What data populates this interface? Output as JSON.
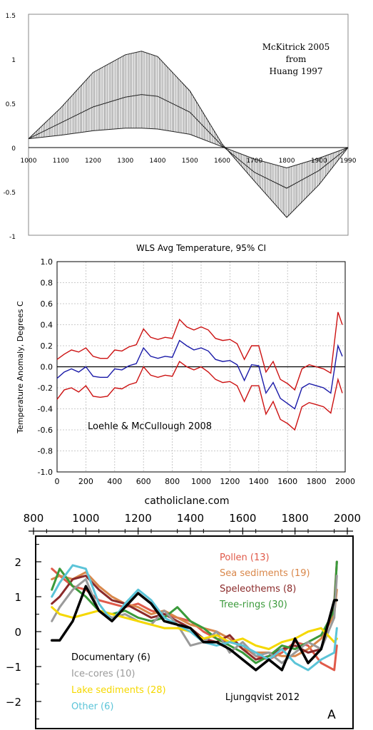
{
  "watermark": "catholiclane.com",
  "chart_data": [
    {
      "type": "line",
      "annotation": [
        "McKitrick 2005",
        "from",
        "Huang 1997"
      ],
      "xlim": [
        1000,
        1990
      ],
      "ylim": [
        -1,
        1.5
      ],
      "x_ticks": [
        "1000",
        "1100",
        "1200",
        "1300",
        "1400",
        "1500",
        "1600",
        "1700",
        "1800",
        "1900",
        "1990"
      ],
      "y_ticks": [
        "1.5",
        "1",
        "0.5",
        "0",
        "-0.5",
        "-1"
      ],
      "x": [
        1000,
        1100,
        1200,
        1300,
        1350,
        1400,
        1500,
        1600,
        1700,
        1800,
        1900,
        1990
      ],
      "series": [
        {
          "values": [
            0.1,
            0.28,
            0.46,
            0.57,
            0.6,
            0.58,
            0.4,
            0.02,
            -0.28,
            -0.46,
            -0.26,
            0.0
          ]
        },
        {
          "values": [
            0.1,
            0.45,
            0.85,
            1.05,
            1.09,
            1.03,
            0.64,
            0.04,
            -0.38,
            -0.79,
            -0.42,
            0.0
          ]
        },
        {
          "values": [
            0.1,
            0.14,
            0.19,
            0.22,
            0.22,
            0.21,
            0.15,
            0.01,
            -0.13,
            -0.23,
            -0.12,
            0.0
          ]
        }
      ],
      "band": true,
      "grid": false
    },
    {
      "type": "line",
      "title": "WLS Avg Temperature, 95% CI",
      "annotation": "Loehle & McCullough 2008",
      "ylabel": "Temperature Anomaly, Degrees C",
      "xlim": [
        0,
        2000
      ],
      "ylim": [
        -1.0,
        1.0
      ],
      "x_ticks": [
        "0",
        "200",
        "400",
        "600",
        "800",
        "1000",
        "1200",
        "1400",
        "1600",
        "1800",
        "2000"
      ],
      "y_ticks": [
        "1.0",
        "0.8",
        "0.6",
        "0.4",
        "0.2",
        "0.0",
        "-0.2",
        "-0.4",
        "-0.6",
        "-0.8",
        "-1.0"
      ],
      "grid": true,
      "x": [
        0,
        50,
        100,
        150,
        200,
        250,
        300,
        350,
        400,
        450,
        500,
        550,
        600,
        650,
        700,
        750,
        800,
        850,
        900,
        950,
        1000,
        1050,
        1100,
        1150,
        1200,
        1250,
        1300,
        1350,
        1400,
        1450,
        1500,
        1550,
        1600,
        1650,
        1700,
        1750,
        1800,
        1850,
        1900,
        1950,
        1980
      ],
      "series": [
        {
          "color": "#1a1aa8",
          "values": [
            -0.11,
            -0.05,
            -0.02,
            -0.05,
            0.0,
            -0.09,
            -0.1,
            -0.1,
            -0.02,
            -0.03,
            0.01,
            0.03,
            0.18,
            0.1,
            0.08,
            0.1,
            0.09,
            0.25,
            0.2,
            0.16,
            0.18,
            0.15,
            0.07,
            0.05,
            0.06,
            0.02,
            -0.13,
            0.02,
            0.01,
            -0.25,
            -0.15,
            -0.3,
            -0.35,
            -0.4,
            -0.2,
            -0.16,
            -0.18,
            -0.2,
            -0.25,
            0.2,
            0.1
          ]
        },
        {
          "color": "#cc1111",
          "values": [
            0.07,
            0.12,
            0.16,
            0.14,
            0.18,
            0.1,
            0.08,
            0.08,
            0.16,
            0.15,
            0.19,
            0.21,
            0.36,
            0.28,
            0.26,
            0.28,
            0.27,
            0.45,
            0.38,
            0.35,
            0.38,
            0.35,
            0.27,
            0.25,
            0.26,
            0.22,
            0.07,
            0.2,
            0.2,
            -0.05,
            0.05,
            -0.12,
            -0.16,
            -0.22,
            -0.02,
            0.02,
            0.0,
            -0.02,
            -0.06,
            0.52,
            0.4
          ]
        },
        {
          "color": "#cc1111",
          "values": [
            -0.31,
            -0.22,
            -0.2,
            -0.24,
            -0.18,
            -0.28,
            -0.29,
            -0.28,
            -0.2,
            -0.21,
            -0.17,
            -0.15,
            0.0,
            -0.08,
            -0.1,
            -0.08,
            -0.09,
            0.05,
            0.0,
            -0.03,
            0.0,
            -0.05,
            -0.12,
            -0.15,
            -0.14,
            -0.18,
            -0.33,
            -0.18,
            -0.18,
            -0.45,
            -0.33,
            -0.5,
            -0.54,
            -0.6,
            -0.38,
            -0.34,
            -0.36,
            -0.38,
            -0.44,
            -0.12,
            -0.25
          ]
        }
      ]
    },
    {
      "type": "line",
      "annotation": "Ljungqvist 2012",
      "panel_letter": "A",
      "xlim": [
        800,
        2000
      ],
      "ylim": [
        -2.5,
        2.5
      ],
      "x_ticks": [
        "800",
        "1000",
        "1200",
        "1400",
        "1600",
        "1800",
        "2000"
      ],
      "y_ticks": [
        "2",
        "1",
        "0",
        "−1",
        "−2"
      ],
      "grid": false,
      "legend_right": [
        {
          "name": "Pollen (13)",
          "color": "#e05a4a"
        },
        {
          "name": "Sea sediments (19)",
          "color": "#d9874a"
        },
        {
          "name": "Speleothems (8)",
          "color": "#8b2a2a"
        },
        {
          "name": "Tree-rings (30)",
          "color": "#3a9a3a"
        }
      ],
      "legend_left": [
        {
          "name": "Documentary (6)",
          "color": "#000000"
        },
        {
          "name": "Ice-cores (10)",
          "color": "#9a9a9a"
        },
        {
          "name": "Lake sediments (28)",
          "color": "#f5d800"
        },
        {
          "name": "Other (6)",
          "color": "#5bc4d8"
        }
      ],
      "x": [
        870,
        900,
        950,
        1000,
        1050,
        1100,
        1150,
        1200,
        1250,
        1300,
        1350,
        1400,
        1450,
        1500,
        1550,
        1600,
        1650,
        1700,
        1750,
        1800,
        1850,
        1900,
        1950,
        1960
      ],
      "series": [
        {
          "color": "#e05a4a",
          "values": [
            1.8,
            1.6,
            1.3,
            1.2,
            0.9,
            0.8,
            0.7,
            0.8,
            0.6,
            0.5,
            0.4,
            0.3,
            0.0,
            -0.2,
            -0.3,
            -0.4,
            -0.7,
            -0.8,
            -0.6,
            -0.3,
            -0.4,
            -0.9,
            -1.1,
            -0.4
          ]
        },
        {
          "color": "#d9874a",
          "values": [
            1.5,
            1.6,
            1.5,
            1.7,
            1.3,
            1.0,
            0.8,
            0.7,
            0.5,
            0.6,
            0.4,
            0.2,
            0.1,
            0.0,
            -0.2,
            -0.5,
            -0.6,
            -0.6,
            -0.7,
            -0.7,
            -0.5,
            -0.2,
            0.5,
            1.2
          ]
        },
        {
          "color": "#8b2a2a",
          "values": [
            0.8,
            1.0,
            1.5,
            1.6,
            1.2,
            0.9,
            0.8,
            0.6,
            0.4,
            0.5,
            0.3,
            0.1,
            -0.2,
            -0.3,
            -0.1,
            -0.5,
            -0.8,
            -0.7,
            -0.5,
            -0.4,
            -0.6,
            -0.5,
            0.8,
            2.0
          ]
        },
        {
          "color": "#3a9a3a",
          "values": [
            1.2,
            1.8,
            1.3,
            1.0,
            0.6,
            0.5,
            0.6,
            0.4,
            0.3,
            0.4,
            0.7,
            0.3,
            0.1,
            -0.2,
            -0.4,
            -0.6,
            -0.9,
            -0.7,
            -0.4,
            -0.5,
            -0.3,
            -0.1,
            0.6,
            2.0
          ]
        },
        {
          "color": "#9a9a9a",
          "values": [
            0.3,
            0.7,
            1.2,
            1.5,
            0.6,
            0.4,
            0.5,
            0.3,
            0.2,
            0.6,
            0.2,
            -0.4,
            -0.3,
            0.0,
            -0.6,
            -0.3,
            -0.7,
            -0.6,
            -0.9,
            -0.6,
            -0.3,
            -0.5,
            0.4,
            1.6
          ]
        },
        {
          "color": "#f5d800",
          "values": [
            0.7,
            0.5,
            0.4,
            0.5,
            0.6,
            0.5,
            0.4,
            0.3,
            0.2,
            0.1,
            0.1,
            0.0,
            -0.2,
            -0.1,
            -0.3,
            -0.2,
            -0.4,
            -0.5,
            -0.3,
            -0.2,
            0.0,
            0.1,
            -0.3,
            -0.2
          ]
        },
        {
          "color": "#5bc4d8",
          "values": [
            1.0,
            1.4,
            1.9,
            1.8,
            0.8,
            0.3,
            0.8,
            1.2,
            0.9,
            0.4,
            0.2,
            0.0,
            -0.3,
            -0.4,
            -0.3,
            -0.4,
            -0.6,
            -0.8,
            -0.5,
            -0.9,
            -1.1,
            -0.8,
            -0.6,
            0.1
          ]
        },
        {
          "color": "#000000",
          "values": [
            -0.25,
            -0.25,
            0.3,
            1.3,
            0.6,
            0.3,
            0.7,
            1.1,
            0.8,
            0.3,
            0.2,
            0.1,
            -0.3,
            -0.3,
            -0.5,
            -0.8,
            -1.1,
            -0.8,
            -1.1,
            -0.2,
            -0.9,
            -0.5,
            0.9,
            0.9
          ]
        }
      ]
    }
  ]
}
